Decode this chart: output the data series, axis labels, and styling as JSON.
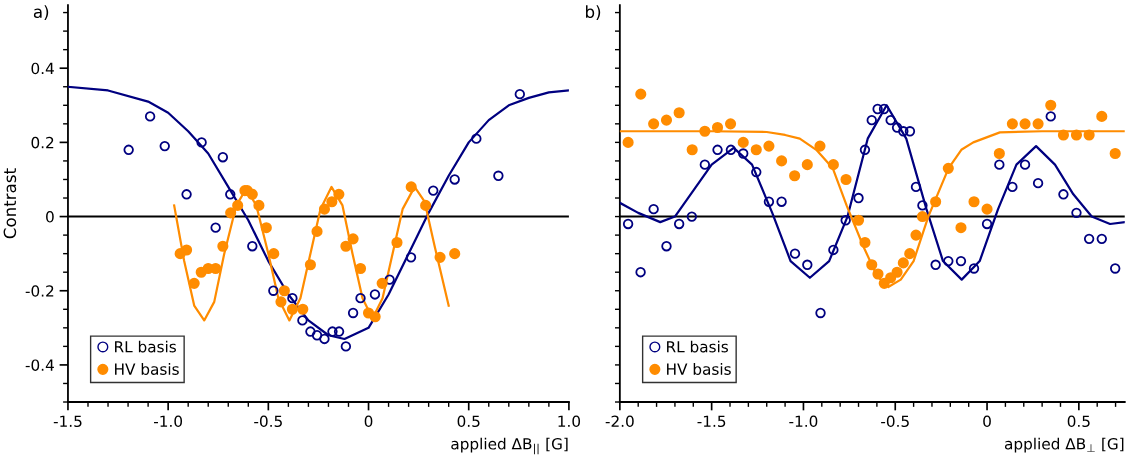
{
  "chart_data": [
    {
      "type": "scatter",
      "title": "a)",
      "xlabel": "applied ΔB$_{||}$ [G]",
      "ylabel": "Contrast",
      "xlim": [
        -1.5,
        1.0
      ],
      "ylim": [
        -0.5,
        0.57
      ],
      "xticks": [
        -1.5,
        {
          "value": -1.4,
          "label": null
        },
        {
          "value": -1.3,
          "label": null
        },
        {
          "value": -1.2,
          "label": null
        },
        {
          "value": -1.1,
          "label": null
        },
        {
          "value": -1.0,
          "label": "-1.0"
        },
        {
          "value": -0.9,
          "label": null
        },
        {
          "value": -0.8,
          "label": null
        },
        {
          "value": -0.7,
          "label": null
        },
        {
          "value": -0.6,
          "label": null
        },
        -0.5,
        {
          "value": -0.4,
          "label": null
        },
        {
          "value": -0.3,
          "label": null
        },
        {
          "value": -0.2,
          "label": null
        },
        {
          "value": -0.1,
          "label": null
        },
        0,
        {
          "value": 0.1,
          "label": null
        },
        {
          "value": 0.2,
          "label": null
        },
        {
          "value": 0.3,
          "label": null
        },
        {
          "value": 0.4,
          "label": null
        },
        0.5,
        {
          "value": 0.6,
          "label": null
        },
        {
          "value": 0.7,
          "label": null
        },
        {
          "value": 0.8,
          "label": null
        },
        {
          "value": 0.9,
          "label": null
        },
        {
          "value": 1.0,
          "label": "1.0"
        }
      ],
      "yticks": [
        {
          "value": -0.5,
          "label": null
        },
        {
          "value": -0.45,
          "label": null
        },
        -0.4,
        {
          "value": -0.35,
          "label": null
        },
        {
          "value": -0.3,
          "label": null
        },
        {
          "value": -0.25,
          "label": null
        },
        -0.2,
        {
          "value": -0.15,
          "label": null
        },
        {
          "value": -0.1,
          "label": null
        },
        {
          "value": -0.05,
          "label": null
        },
        0,
        {
          "value": 0.05,
          "label": null
        },
        {
          "value": 0.1,
          "label": null
        },
        {
          "value": 0.15,
          "label": null
        },
        0.2,
        {
          "value": 0.25,
          "label": null
        },
        {
          "value": 0.3,
          "label": null
        },
        {
          "value": 0.35,
          "label": null
        },
        0.4,
        {
          "value": 0.45,
          "label": null
        },
        {
          "value": 0.5,
          "label": null
        },
        {
          "value": 0.55,
          "label": null
        }
      ],
      "ref_lines": [
        {
          "axis": "y",
          "value": 0,
          "color": "#000000"
        }
      ],
      "legend": "bottom left",
      "grid": false,
      "series": [
        {
          "name": "RL basis",
          "marker": "circle-open",
          "color": "#000080",
          "x": [
            -1.197,
            -1.09,
            -1.017,
            -0.908,
            -0.833,
            -0.763,
            -0.727,
            -0.69,
            -0.58,
            -0.475,
            -0.38,
            -0.33,
            -0.29,
            -0.257,
            -0.22,
            -0.18,
            -0.147,
            -0.113,
            -0.077,
            -0.04,
            0.032,
            0.105,
            0.212,
            0.323,
            0.43,
            0.538,
            0.648,
            0.755
          ],
          "values": [
            0.18,
            0.27,
            0.19,
            0.06,
            0.2,
            -0.03,
            0.16,
            0.06,
            -0.08,
            -0.2,
            -0.22,
            -0.28,
            -0.31,
            -0.32,
            -0.33,
            -0.31,
            -0.31,
            -0.35,
            -0.26,
            -0.22,
            -0.21,
            -0.17,
            -0.11,
            0.07,
            0.1,
            0.21,
            0.11,
            0.33
          ]
        },
        {
          "name": "HV basis",
          "marker": "circle",
          "color": "#ff8c00",
          "x": [
            -0.94,
            -0.908,
            -0.87,
            -0.835,
            -0.8,
            -0.763,
            -0.727,
            -0.688,
            -0.653,
            -0.617,
            -0.605,
            -0.58,
            -0.547,
            -0.51,
            -0.473,
            -0.437,
            -0.42,
            -0.38,
            -0.328,
            -0.29,
            -0.257,
            -0.22,
            -0.183,
            -0.148,
            -0.113,
            -0.077,
            -0.04,
            0.0,
            0.033,
            0.068,
            0.142,
            0.213,
            0.285,
            0.357,
            0.43
          ],
          "values": [
            -0.1,
            -0.09,
            -0.18,
            -0.15,
            -0.14,
            -0.14,
            -0.08,
            0.01,
            0.03,
            0.07,
            0.07,
            0.06,
            0.03,
            -0.03,
            -0.1,
            -0.23,
            -0.2,
            -0.25,
            -0.25,
            -0.13,
            -0.04,
            0.02,
            0.04,
            0.06,
            -0.08,
            -0.06,
            -0.14,
            -0.26,
            -0.27,
            -0.18,
            -0.07,
            0.08,
            0.03,
            -0.11,
            -0.1
          ]
        },
        {
          "type": "line",
          "marker": "none",
          "color": "#000080",
          "x": [
            -1.5,
            -1.3,
            -1.1,
            -1.0,
            -0.9,
            -0.8,
            -0.7,
            -0.6,
            -0.5,
            -0.4,
            -0.3,
            -0.2,
            -0.12,
            0.0,
            0.1,
            0.2,
            0.3,
            0.4,
            0.5,
            0.6,
            0.7,
            0.8,
            0.9,
            1.0
          ],
          "values": [
            0.35,
            0.34,
            0.31,
            0.28,
            0.23,
            0.17,
            0.08,
            -0.01,
            -0.12,
            -0.21,
            -0.28,
            -0.32,
            -0.33,
            -0.3,
            -0.21,
            -0.1,
            0.01,
            0.11,
            0.2,
            0.26,
            0.3,
            0.32,
            0.335,
            0.34
          ]
        },
        {
          "type": "line",
          "marker": "none",
          "color": "#ff8c00",
          "x": [
            -0.97,
            -0.92,
            -0.87,
            -0.82,
            -0.77,
            -0.72,
            -0.66,
            -0.61,
            -0.56,
            -0.5,
            -0.45,
            -0.395,
            -0.34,
            -0.29,
            -0.24,
            -0.185,
            -0.13,
            -0.08,
            -0.03,
            0.02,
            0.07,
            0.12,
            0.17,
            0.23,
            0.28,
            0.33,
            0.4
          ],
          "values": [
            0.03,
            -0.12,
            -0.24,
            -0.28,
            -0.23,
            -0.1,
            0.03,
            0.075,
            0.03,
            -0.1,
            -0.22,
            -0.28,
            -0.22,
            -0.1,
            0.02,
            0.08,
            0.03,
            -0.1,
            -0.22,
            -0.275,
            -0.22,
            -0.1,
            0.02,
            0.08,
            0.04,
            -0.08,
            -0.24
          ]
        }
      ]
    },
    {
      "type": "scatter",
      "title": "b)",
      "xlabel": "applied ΔB$_{⊥}$ [G]",
      "xlim": [
        -2.0,
        0.75
      ],
      "ylim": [
        -0.5,
        0.57
      ],
      "tick_labels": "x",
      "xticks": [
        {
          "value": -2.0,
          "label": "-2.0"
        },
        {
          "value": -1.9,
          "label": null
        },
        {
          "value": -1.8,
          "label": null
        },
        {
          "value": -1.7,
          "label": null
        },
        {
          "value": -1.6,
          "label": null
        },
        -1.5,
        {
          "value": -1.4,
          "label": null
        },
        {
          "value": -1.3,
          "label": null
        },
        {
          "value": -1.2,
          "label": null
        },
        {
          "value": -1.1,
          "label": null
        },
        {
          "value": -1.0,
          "label": "-1.0"
        },
        {
          "value": -0.9,
          "label": null
        },
        {
          "value": -0.8,
          "label": null
        },
        {
          "value": -0.7,
          "label": null
        },
        {
          "value": -0.6,
          "label": null
        },
        -0.5,
        {
          "value": -0.4,
          "label": null
        },
        {
          "value": -0.3,
          "label": null
        },
        {
          "value": -0.2,
          "label": null
        },
        {
          "value": -0.1,
          "label": null
        },
        0,
        {
          "value": 0.1,
          "label": null
        },
        {
          "value": 0.2,
          "label": null
        },
        {
          "value": 0.3,
          "label": null
        },
        {
          "value": 0.4,
          "label": null
        },
        0.5,
        {
          "value": 0.6,
          "label": null
        },
        {
          "value": 0.7,
          "label": null
        }
      ],
      "yticks": [
        {
          "value": -0.5,
          "label": null
        },
        {
          "value": -0.45,
          "label": null
        },
        {
          "value": -0.4,
          "label": null
        },
        {
          "value": -0.35,
          "label": null
        },
        {
          "value": -0.3,
          "label": null
        },
        {
          "value": -0.25,
          "label": null
        },
        {
          "value": -0.2,
          "label": null
        },
        {
          "value": -0.15,
          "label": null
        },
        {
          "value": -0.1,
          "label": null
        },
        {
          "value": -0.05,
          "label": null
        },
        {
          "value": 0,
          "label": null
        },
        {
          "value": 0.05,
          "label": null
        },
        {
          "value": 0.1,
          "label": null
        },
        {
          "value": 0.15,
          "label": null
        },
        {
          "value": 0.2,
          "label": null
        },
        {
          "value": 0.25,
          "label": null
        },
        {
          "value": 0.3,
          "label": null
        },
        {
          "value": 0.35,
          "label": null
        },
        {
          "value": 0.4,
          "label": null
        },
        {
          "value": 0.45,
          "label": null
        },
        {
          "value": 0.5,
          "label": null
        },
        {
          "value": 0.55,
          "label": null
        }
      ],
      "ref_lines": [
        {
          "axis": "y",
          "value": 0,
          "color": "#000000"
        }
      ],
      "legend": "bottom left",
      "grid": false,
      "series": [
        {
          "name": "RL basis",
          "marker": "circle-open",
          "color": "#000080",
          "x": [
            -1.955,
            -1.887,
            -1.816,
            -1.746,
            -1.677,
            -1.608,
            -1.537,
            -1.468,
            -1.395,
            -1.328,
            -1.257,
            -1.188,
            -1.119,
            -1.046,
            -0.979,
            -0.907,
            -0.837,
            -0.77,
            -0.7,
            -0.665,
            -0.628,
            -0.596,
            -0.561,
            -0.525,
            -0.49,
            -0.456,
            -0.42,
            -0.387,
            -0.352,
            -0.28,
            -0.211,
            -0.142,
            -0.071,
            0.0,
            0.067,
            0.138,
            0.207,
            0.278,
            0.347,
            0.416,
            0.487,
            0.556,
            0.625,
            0.698
          ],
          "values": [
            -0.02,
            -0.15,
            0.02,
            -0.08,
            -0.02,
            0.0,
            0.14,
            0.18,
            0.18,
            0.17,
            0.12,
            0.04,
            0.04,
            -0.1,
            -0.13,
            -0.26,
            -0.09,
            -0.01,
            0.05,
            0.18,
            0.26,
            0.29,
            0.29,
            0.26,
            0.24,
            0.23,
            0.23,
            0.08,
            0.03,
            -0.13,
            -0.12,
            -0.12,
            -0.14,
            -0.02,
            0.14,
            0.08,
            0.14,
            0.09,
            0.27,
            0.06,
            0.01,
            -0.06,
            -0.06,
            -0.14
          ]
        },
        {
          "name": "HV basis",
          "marker": "circle",
          "color": "#ff8c00",
          "x": [
            -1.955,
            -1.886,
            -1.816,
            -1.746,
            -1.677,
            -1.606,
            -1.537,
            -1.468,
            -1.397,
            -1.328,
            -1.257,
            -1.188,
            -1.119,
            -1.048,
            -0.979,
            -0.91,
            -0.837,
            -0.768,
            -0.7,
            -0.665,
            -0.628,
            -0.594,
            -0.56,
            -0.525,
            -0.49,
            -0.456,
            -0.421,
            -0.387,
            -0.352,
            -0.28,
            -0.211,
            -0.142,
            -0.071,
            0.0,
            0.067,
            0.138,
            0.207,
            0.278,
            0.347,
            0.416,
            0.487,
            0.556,
            0.625,
            0.698
          ],
          "values": [
            0.2,
            0.33,
            0.25,
            0.26,
            0.28,
            0.18,
            0.23,
            0.24,
            0.25,
            0.2,
            0.18,
            0.19,
            0.15,
            0.11,
            0.14,
            0.19,
            0.14,
            0.1,
            -0.01,
            -0.07,
            -0.13,
            -0.155,
            -0.18,
            -0.165,
            -0.15,
            -0.125,
            -0.1,
            -0.05,
            0.0,
            0.04,
            0.13,
            -0.03,
            0.04,
            0.02,
            0.17,
            0.25,
            0.25,
            0.25,
            0.3,
            0.22,
            0.22,
            0.22,
            0.27,
            0.17
          ]
        },
        {
          "type": "line",
          "marker": "none",
          "color": "#000080",
          "x": [
            -2.0,
            -1.9,
            -1.78,
            -1.7,
            -1.6,
            -1.5,
            -1.38,
            -1.28,
            -1.17,
            -1.07,
            -0.965,
            -0.86,
            -0.76,
            -0.65,
            -0.547,
            -0.44,
            -0.33,
            -0.24,
            -0.138,
            -0.04,
            0.06,
            0.16,
            0.267,
            0.37,
            0.47,
            0.57,
            0.67,
            0.75
          ],
          "values": [
            0.037,
            0.01,
            -0.015,
            0.0,
            0.07,
            0.14,
            0.185,
            0.14,
            0.01,
            -0.12,
            -0.165,
            -0.12,
            0.0,
            0.21,
            0.3,
            0.21,
            0.02,
            -0.12,
            -0.17,
            -0.12,
            0.02,
            0.14,
            0.19,
            0.14,
            0.06,
            0.0,
            -0.02,
            -0.015
          ]
        },
        {
          "type": "line",
          "marker": "none",
          "color": "#ff8c00",
          "x": [
            -2.0,
            -1.5,
            -1.2,
            -1.1,
            -1.02,
            -0.93,
            -0.84,
            -0.765,
            -0.674,
            -0.6,
            -0.538,
            -0.47,
            -0.4,
            -0.32,
            -0.21,
            -0.14,
            -0.075,
            0.07,
            0.3,
            0.75
          ],
          "values": [
            0.23,
            0.23,
            0.228,
            0.22,
            0.21,
            0.18,
            0.13,
            0.03,
            -0.08,
            -0.16,
            -0.19,
            -0.17,
            -0.12,
            0.0,
            0.13,
            0.18,
            0.2,
            0.227,
            0.23,
            0.23
          ]
        }
      ]
    }
  ]
}
